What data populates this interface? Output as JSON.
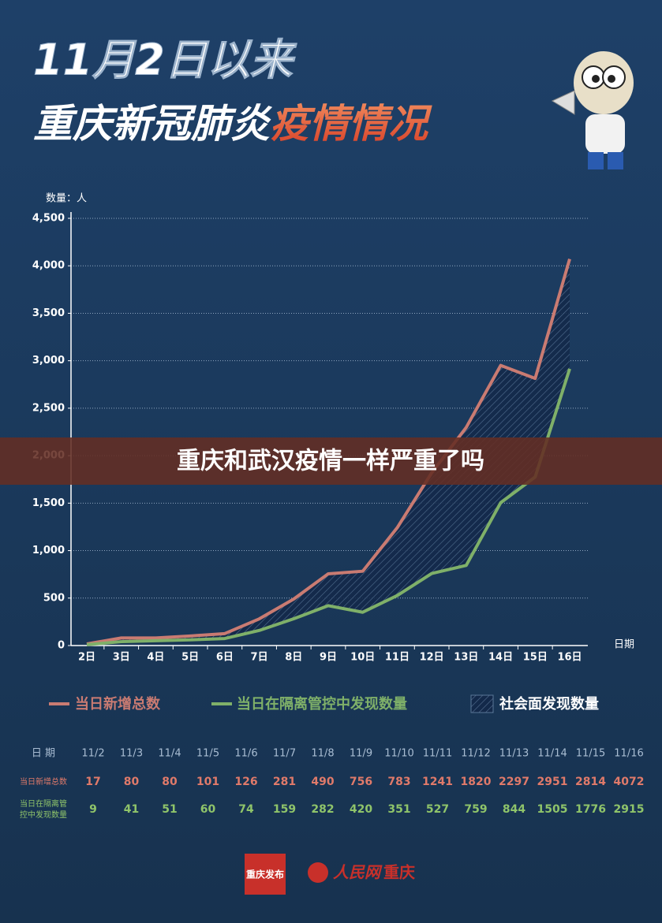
{
  "header": {
    "line1": "11月2日以来",
    "line2a": "重庆新冠肺炎",
    "line2b": "疫情情况"
  },
  "banner": "重庆和武汉疫情一样严重了吗",
  "chart_data": {
    "type": "line",
    "y_label": "数量：人",
    "x_label": "日期",
    "categories": [
      "2日",
      "3日",
      "4日",
      "5日",
      "6日",
      "7日",
      "8日",
      "9日",
      "10日",
      "11日",
      "12日",
      "13日",
      "14日",
      "15日",
      "16日"
    ],
    "series": [
      {
        "name": "当日新增总数",
        "color": "#c97b72",
        "values": [
          17,
          80,
          80,
          101,
          126,
          281,
          490,
          756,
          783,
          1241,
          1820,
          2297,
          2951,
          2814,
          4072
        ]
      },
      {
        "name": "当日在隔离管控中发现数量",
        "color": "#7fb069",
        "values": [
          9,
          41,
          51,
          60,
          74,
          159,
          282,
          420,
          351,
          527,
          759,
          844,
          1505,
          1776,
          2915
        ]
      }
    ],
    "area_label": "社会面发现数量",
    "ylim": [
      0,
      4500
    ],
    "yticks": [
      0,
      500,
      {
        "value": 1000,
        "label": "1,000"
      },
      {
        "value": 1500,
        "label": "1,500"
      },
      {
        "value": 2000,
        "label": "2,000"
      },
      {
        "value": 2500,
        "label": "2,500"
      },
      {
        "value": 3000,
        "label": "3,000"
      },
      {
        "value": 3500,
        "label": "3,500"
      },
      {
        "value": 4000,
        "label": "4,000"
      },
      {
        "value": 4500,
        "label": "4,500"
      }
    ],
    "grid": true
  },
  "table": {
    "header": "日 期",
    "dates": [
      "11/2",
      "11/3",
      "11/4",
      "11/5",
      "11/6",
      "11/7",
      "11/8",
      "11/9",
      "11/10",
      "11/11",
      "11/12",
      "11/13",
      "11/14",
      "11/15",
      "11/16"
    ]
  },
  "footer": {
    "logo_left": "重庆发布",
    "logo_right_a": "人民网",
    "logo_right_b": "重庆"
  }
}
